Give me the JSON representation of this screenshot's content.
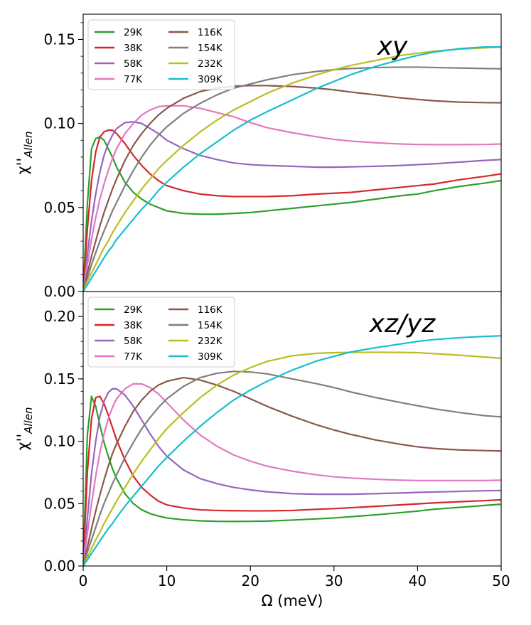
{
  "chart_data": {
    "type": "line",
    "xlabel": "Ω (meV)",
    "xlim": [
      0,
      50
    ],
    "x_ticks": [
      0,
      10,
      20,
      30,
      40,
      50
    ],
    "x_tick_labels": [
      "0",
      "10",
      "20",
      "30",
      "40",
      "50"
    ],
    "shared_x": true,
    "panels": [
      {
        "id": "xy",
        "title": "xy",
        "ylabel_base": "χ''",
        "ylabel_sub": "Allen",
        "ylim": [
          0,
          0.165
        ],
        "y_ticks": [
          0,
          0.05,
          0.1,
          0.15
        ],
        "y_tick_labels": [
          "0.00",
          "0.05",
          "0.10",
          "0.15"
        ],
        "legend_position": "top-left",
        "legend_columns": 2,
        "x": [
          0,
          0.5,
          1,
          1.5,
          2,
          2.5,
          3,
          3.5,
          4,
          5,
          6,
          7,
          8,
          9,
          10,
          12,
          14,
          16,
          18,
          20,
          22,
          25,
          28,
          30,
          32,
          35,
          38,
          40,
          42,
          45,
          48,
          50
        ],
        "series": [
          {
            "name": "29K",
            "color": "#2ca02c",
            "values": [
              0,
              0.052,
              0.085,
              0.091,
              0.092,
              0.09,
              0.085,
              0.08,
              0.074,
              0.065,
              0.059,
              0.055,
              0.052,
              0.05,
              0.048,
              0.0465,
              0.046,
              0.046,
              0.0465,
              0.047,
              0.048,
              0.0495,
              0.051,
              0.052,
              0.053,
              0.055,
              0.057,
              0.058,
              0.06,
              0.0625,
              0.0645,
              0.066
            ]
          },
          {
            "name": "38K",
            "color": "#d62728",
            "values": [
              0,
              0.037,
              0.066,
              0.083,
              0.092,
              0.095,
              0.096,
              0.096,
              0.094,
              0.088,
              0.081,
              0.075,
              0.07,
              0.066,
              0.063,
              0.06,
              0.058,
              0.057,
              0.0565,
              0.0565,
              0.0565,
              0.057,
              0.058,
              0.0585,
              0.059,
              0.0605,
              0.062,
              0.063,
              0.064,
              0.0665,
              0.0685,
              0.07
            ]
          },
          {
            "name": "58K",
            "color": "#9467bd",
            "values": [
              0,
              0.022,
              0.042,
              0.058,
              0.071,
              0.081,
              0.088,
              0.093,
              0.097,
              0.1005,
              0.101,
              0.1,
              0.097,
              0.094,
              0.09,
              0.085,
              0.081,
              0.0785,
              0.0765,
              0.0755,
              0.075,
              0.0745,
              0.074,
              0.074,
              0.0742,
              0.0745,
              0.075,
              0.0755,
              0.076,
              0.077,
              0.078,
              0.0785
            ]
          },
          {
            "name": "77K",
            "color": "#e377c2",
            "values": [
              0,
              0.016,
              0.031,
              0.044,
              0.055,
              0.064,
              0.072,
              0.079,
              0.085,
              0.094,
              0.1,
              0.105,
              0.108,
              0.11,
              0.1105,
              0.1105,
              0.109,
              0.1065,
              0.104,
              0.1005,
              0.0975,
              0.0945,
              0.092,
              0.0905,
              0.0895,
              0.0885,
              0.0878,
              0.0875,
              0.0874,
              0.0874,
              0.0875,
              0.0878
            ]
          },
          {
            "name": "116K",
            "color": "#8c564b",
            "values": [
              0,
              0.011,
              0.021,
              0.03,
              0.039,
              0.047,
              0.054,
              0.061,
              0.067,
              0.078,
              0.087,
              0.094,
              0.1,
              0.105,
              0.109,
              0.115,
              0.119,
              0.121,
              0.1222,
              0.1225,
              0.1225,
              0.122,
              0.121,
              0.12,
              0.1187,
              0.117,
              0.1152,
              0.1143,
              0.1135,
              0.1127,
              0.1124,
              0.1123
            ]
          },
          {
            "name": "154K",
            "color": "#7f7f7f",
            "values": [
              0,
              0.008,
              0.016,
              0.023,
              0.03,
              0.036,
              0.042,
              0.048,
              0.053,
              0.063,
              0.072,
              0.08,
              0.087,
              0.093,
              0.098,
              0.106,
              0.112,
              0.117,
              0.121,
              0.1235,
              0.126,
              0.129,
              0.131,
              0.132,
              0.1327,
              0.1333,
              0.1335,
              0.1335,
              0.1333,
              0.133,
              0.1327,
              0.1325
            ]
          },
          {
            "name": "232K",
            "color": "#bcbd22",
            "values": [
              0,
              0.006,
              0.011,
              0.016,
              0.021,
              0.026,
              0.03,
              0.035,
              0.039,
              0.047,
              0.054,
              0.061,
              0.067,
              0.073,
              0.078,
              0.087,
              0.095,
              0.102,
              0.108,
              0.113,
              0.118,
              0.124,
              0.129,
              0.132,
              0.1345,
              0.1375,
              0.1405,
              0.1418,
              0.143,
              0.1442,
              0.145,
              0.1455
            ]
          },
          {
            "name": "309K",
            "color": "#17becf",
            "values": [
              0,
              0.004,
              0.008,
              0.012,
              0.016,
              0.02,
              0.024,
              0.027,
              0.031,
              0.037,
              0.043,
              0.049,
              0.054,
              0.06,
              0.065,
              0.074,
              0.082,
              0.089,
              0.096,
              0.102,
              0.107,
              0.114,
              0.121,
              0.125,
              0.129,
              0.134,
              0.138,
              0.1405,
              0.1425,
              0.1445,
              0.1455,
              0.1455
            ]
          }
        ]
      },
      {
        "id": "xzyz",
        "title": "xz/yz",
        "ylabel_base": "χ''",
        "ylabel_sub": "Allen",
        "ylim": [
          0,
          0.22
        ],
        "y_ticks": [
          0,
          0.05,
          0.1,
          0.15,
          0.2
        ],
        "y_tick_labels": [
          "0.00",
          "0.05",
          "0.10",
          "0.15",
          "0.20"
        ],
        "legend_position": "top-left",
        "legend_columns": 2,
        "x": [
          0,
          0.5,
          1,
          1.5,
          2,
          2.5,
          3,
          3.5,
          4,
          5,
          6,
          7,
          8,
          9,
          10,
          12,
          14,
          16,
          18,
          20,
          22,
          25,
          28,
          30,
          32,
          35,
          38,
          40,
          42,
          45,
          48,
          50
        ],
        "series": [
          {
            "name": "29K",
            "color": "#2ca02c",
            "values": [
              0,
              0.105,
              0.136,
              0.128,
              0.113,
              0.099,
              0.088,
              0.078,
              0.07,
              0.058,
              0.05,
              0.045,
              0.042,
              0.04,
              0.0385,
              0.037,
              0.0362,
              0.0358,
              0.0357,
              0.0358,
              0.036,
              0.0368,
              0.0378,
              0.0385,
              0.0395,
              0.041,
              0.0428,
              0.044,
              0.0455,
              0.047,
              0.0485,
              0.0495
            ]
          },
          {
            "name": "38K",
            "color": "#d62728",
            "values": [
              0,
              0.075,
              0.118,
              0.135,
              0.136,
              0.13,
              0.121,
              0.111,
              0.101,
              0.085,
              0.072,
              0.063,
              0.057,
              0.052,
              0.049,
              0.0465,
              0.045,
              0.0445,
              0.0443,
              0.0442,
              0.0442,
              0.0445,
              0.0455,
              0.046,
              0.0467,
              0.0478,
              0.049,
              0.0498,
              0.0506,
              0.0515,
              0.0524,
              0.053
            ]
          },
          {
            "name": "58K",
            "color": "#9467bd",
            "values": [
              0,
              0.038,
              0.074,
              0.1,
              0.12,
              0.132,
              0.139,
              0.142,
              0.142,
              0.137,
              0.128,
              0.117,
              0.106,
              0.096,
              0.088,
              0.077,
              0.07,
              0.066,
              0.063,
              0.061,
              0.0595,
              0.058,
              0.0575,
              0.0575,
              0.0575,
              0.058,
              0.0585,
              0.059,
              0.0593,
              0.0598,
              0.0603,
              0.0605
            ]
          },
          {
            "name": "77K",
            "color": "#e377c2",
            "values": [
              0,
              0.026,
              0.05,
              0.072,
              0.091,
              0.106,
              0.118,
              0.127,
              0.134,
              0.142,
              0.146,
              0.146,
              0.143,
              0.138,
              0.131,
              0.117,
              0.105,
              0.096,
              0.089,
              0.084,
              0.08,
              0.076,
              0.073,
              0.0715,
              0.0705,
              0.0695,
              0.0688,
              0.0685,
              0.0685,
              0.0685,
              0.0685,
              0.0688
            ]
          },
          {
            "name": "116K",
            "color": "#8c564b",
            "values": [
              0,
              0.015,
              0.03,
              0.044,
              0.057,
              0.069,
              0.08,
              0.09,
              0.098,
              0.112,
              0.124,
              0.133,
              0.14,
              0.145,
              0.148,
              0.151,
              0.149,
              0.145,
              0.14,
              0.134,
              0.128,
              0.12,
              0.113,
              0.109,
              0.1055,
              0.101,
              0.0975,
              0.0955,
              0.0942,
              0.093,
              0.0925,
              0.0922
            ]
          },
          {
            "name": "154K",
            "color": "#7f7f7f",
            "values": [
              0,
              0.011,
              0.021,
              0.031,
              0.041,
              0.05,
              0.058,
              0.066,
              0.073,
              0.087,
              0.099,
              0.11,
              0.119,
              0.127,
              0.134,
              0.144,
              0.151,
              0.1545,
              0.156,
              0.1555,
              0.154,
              0.15,
              0.146,
              0.143,
              0.1395,
              0.135,
              0.131,
              0.1285,
              0.126,
              0.123,
              0.1205,
              0.1195
            ]
          },
          {
            "name": "232K",
            "color": "#bcbd22",
            "values": [
              0,
              0.007,
              0.014,
              0.021,
              0.027,
              0.034,
              0.04,
              0.046,
              0.052,
              0.063,
              0.074,
              0.084,
              0.093,
              0.102,
              0.11,
              0.123,
              0.135,
              0.145,
              0.153,
              0.159,
              0.164,
              0.1685,
              0.1705,
              0.171,
              0.1712,
              0.1713,
              0.1712,
              0.171,
              0.1702,
              0.169,
              0.1675,
              0.1665
            ]
          },
          {
            "name": "309K",
            "color": "#17becf",
            "values": [
              0,
              0.005,
              0.01,
              0.015,
              0.02,
              0.025,
              0.03,
              0.034,
              0.039,
              0.048,
              0.056,
              0.064,
              0.072,
              0.08,
              0.087,
              0.1,
              0.112,
              0.123,
              0.133,
              0.141,
              0.148,
              0.157,
              0.1645,
              0.168,
              0.1715,
              0.175,
              0.178,
              0.18,
              0.1815,
              0.183,
              0.184,
              0.1845
            ]
          }
        ]
      }
    ]
  }
}
